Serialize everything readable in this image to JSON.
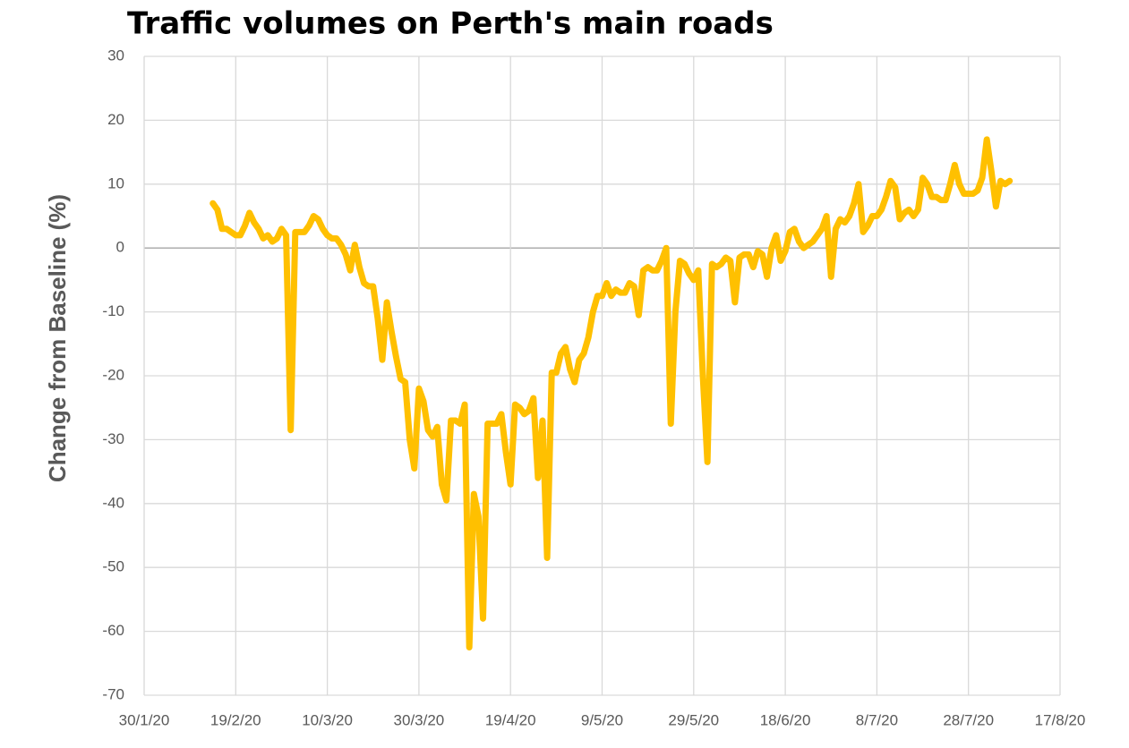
{
  "chart_data": {
    "type": "line",
    "title": "Traffic volumes on Perth's main roads",
    "y_label": "Change from Baseline (%)",
    "color": "#FFC000",
    "grid": true,
    "ylim": [
      -70,
      30
    ],
    "yticks": [
      -70,
      -60,
      -50,
      -40,
      -30,
      -20,
      -10,
      0,
      10,
      20,
      30
    ],
    "xlim": [
      "2020-01-30",
      "2020-08-17"
    ],
    "xticks": [
      {
        "value": "2020-01-30",
        "label": "30/1/20"
      },
      {
        "value": "2020-02-19",
        "label": "19/2/20"
      },
      {
        "value": "2020-03-10",
        "label": "10/3/20"
      },
      {
        "value": "2020-03-30",
        "label": "30/3/20"
      },
      {
        "value": "2020-04-19",
        "label": "19/4/20"
      },
      {
        "value": "2020-05-09",
        "label": "9/5/20"
      },
      {
        "value": "2020-05-29",
        "label": "29/5/20"
      },
      {
        "value": "2020-06-18",
        "label": "18/6/20"
      },
      {
        "value": "2020-07-08",
        "label": "8/7/20"
      },
      {
        "value": "2020-07-28",
        "label": "28/7/20"
      },
      {
        "value": "2020-08-17",
        "label": "17/8/20"
      }
    ],
    "x": [
      "2020-02-14",
      "2020-02-15",
      "2020-02-16",
      "2020-02-17",
      "2020-02-18",
      "2020-02-19",
      "2020-02-20",
      "2020-02-21",
      "2020-02-22",
      "2020-02-23",
      "2020-02-24",
      "2020-02-25",
      "2020-02-26",
      "2020-02-27",
      "2020-02-28",
      "2020-02-29",
      "2020-03-01",
      "2020-03-02",
      "2020-03-03",
      "2020-03-04",
      "2020-03-05",
      "2020-03-06",
      "2020-03-07",
      "2020-03-08",
      "2020-03-09",
      "2020-03-10",
      "2020-03-11",
      "2020-03-12",
      "2020-03-13",
      "2020-03-14",
      "2020-03-15",
      "2020-03-16",
      "2020-03-17",
      "2020-03-18",
      "2020-03-19",
      "2020-03-20",
      "2020-03-21",
      "2020-03-22",
      "2020-03-23",
      "2020-03-24",
      "2020-03-25",
      "2020-03-26",
      "2020-03-27",
      "2020-03-28",
      "2020-03-29",
      "2020-03-30",
      "2020-03-31",
      "2020-04-01",
      "2020-04-02",
      "2020-04-03",
      "2020-04-04",
      "2020-04-05",
      "2020-04-06",
      "2020-04-07",
      "2020-04-08",
      "2020-04-09",
      "2020-04-10",
      "2020-04-11",
      "2020-04-12",
      "2020-04-13",
      "2020-04-14",
      "2020-04-15",
      "2020-04-16",
      "2020-04-17",
      "2020-04-18",
      "2020-04-19",
      "2020-04-20",
      "2020-04-21",
      "2020-04-22",
      "2020-04-23",
      "2020-04-24",
      "2020-04-25",
      "2020-04-26",
      "2020-04-27",
      "2020-04-28",
      "2020-04-29",
      "2020-04-30",
      "2020-05-01",
      "2020-05-02",
      "2020-05-03",
      "2020-05-04",
      "2020-05-05",
      "2020-05-06",
      "2020-05-07",
      "2020-05-08",
      "2020-05-09",
      "2020-05-10",
      "2020-05-11",
      "2020-05-12",
      "2020-05-13",
      "2020-05-14",
      "2020-05-15",
      "2020-05-16",
      "2020-05-17",
      "2020-05-18",
      "2020-05-19",
      "2020-05-20",
      "2020-05-21",
      "2020-05-22",
      "2020-05-23",
      "2020-05-24",
      "2020-05-25",
      "2020-05-26",
      "2020-05-27",
      "2020-05-28",
      "2020-05-29",
      "2020-05-30",
      "2020-05-31",
      "2020-06-01",
      "2020-06-02",
      "2020-06-03",
      "2020-06-04",
      "2020-06-05",
      "2020-06-06",
      "2020-06-07",
      "2020-06-08",
      "2020-06-09",
      "2020-06-10",
      "2020-06-11",
      "2020-06-12",
      "2020-06-13",
      "2020-06-14",
      "2020-06-15",
      "2020-06-16",
      "2020-06-17",
      "2020-06-18",
      "2020-06-19",
      "2020-06-20",
      "2020-06-21",
      "2020-06-22",
      "2020-06-23",
      "2020-06-24",
      "2020-06-25",
      "2020-06-26",
      "2020-06-27",
      "2020-06-28",
      "2020-06-29",
      "2020-06-30",
      "2020-07-01",
      "2020-07-02",
      "2020-07-03",
      "2020-07-04",
      "2020-07-05",
      "2020-07-06",
      "2020-07-07",
      "2020-07-08",
      "2020-07-09",
      "2020-07-10",
      "2020-07-11",
      "2020-07-12",
      "2020-07-13",
      "2020-07-14",
      "2020-07-15",
      "2020-07-16",
      "2020-07-17",
      "2020-07-18",
      "2020-07-19",
      "2020-07-20",
      "2020-07-21",
      "2020-07-22",
      "2020-07-23",
      "2020-07-24",
      "2020-07-25",
      "2020-07-26",
      "2020-07-27",
      "2020-07-28",
      "2020-07-29",
      "2020-07-30",
      "2020-07-31",
      "2020-08-01",
      "2020-08-02",
      "2020-08-03",
      "2020-08-04",
      "2020-08-05",
      "2020-08-06"
    ],
    "values": [
      7,
      6,
      3,
      3,
      2.5,
      2,
      2,
      3.5,
      5.5,
      4,
      3,
      1.5,
      2,
      1,
      1.5,
      3,
      2,
      -28.5,
      2.5,
      2.5,
      2.5,
      3.5,
      5,
      4.5,
      3,
      2,
      1.5,
      1.5,
      0.5,
      -1,
      -3.5,
      0.5,
      -3,
      -5.5,
      -6,
      -6,
      -11,
      -17.5,
      -8.5,
      -13,
      -17,
      -20.5,
      -21,
      -30,
      -34.5,
      -22,
      -24,
      -28.5,
      -29.5,
      -28,
      -37,
      -39.5,
      -27,
      -27,
      -27.5,
      -24.5,
      -62.5,
      -38.5,
      -42,
      -58,
      -27.5,
      -27.5,
      -27.5,
      -26,
      -32,
      -37,
      -24.5,
      -25,
      -26,
      -25.5,
      -23.5,
      -36,
      -27,
      -48.5,
      -19.5,
      -19.5,
      -16.5,
      -15.5,
      -19,
      -21,
      -17.5,
      -16.5,
      -14,
      -10,
      -7.5,
      -7.5,
      -5.5,
      -7.5,
      -6.5,
      -7,
      -7,
      -5.5,
      -6,
      -10.5,
      -3.5,
      -3,
      -3.5,
      -3.5,
      -2,
      0,
      -27.5,
      -10,
      -2,
      -2.5,
      -4,
      -5,
      -3.5,
      -20,
      -33.5,
      -2.5,
      -3,
      -2.5,
      -1.5,
      -2,
      -8.5,
      -1.5,
      -1,
      -1,
      -3,
      -0.5,
      -1,
      -4.5,
      0,
      2,
      -2,
      -0.5,
      2.5,
      3,
      1,
      0,
      0.5,
      1,
      2,
      3,
      5,
      -4.5,
      3,
      4.5,
      4,
      5,
      7,
      10,
      2.5,
      3.5,
      5,
      5,
      6,
      8,
      10.5,
      9.5,
      4.5,
      5.5,
      6,
      5,
      6,
      11,
      10,
      8,
      8,
      7.5,
      7.5,
      10,
      13,
      10,
      8.5,
      8.5,
      8.5,
      9,
      11,
      17,
      12,
      6.5,
      10.5,
      10,
      10.5
    ]
  }
}
